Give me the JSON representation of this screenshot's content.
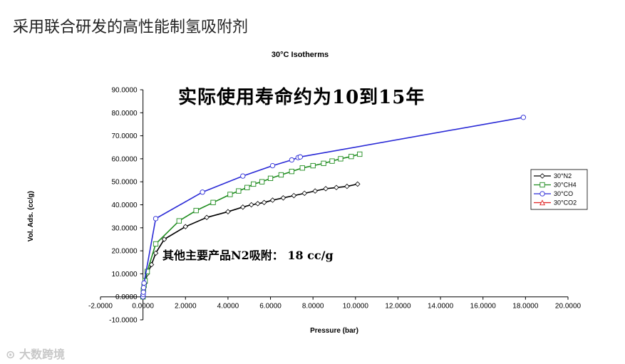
{
  "slide": {
    "title": "采用联合研发的高性能制氢吸附剂",
    "overlay_main": "实际使用寿命约为10到15年",
    "overlay_sub": "其他主要产品N2吸附： 18 cc/g",
    "watermark": "大数跨境"
  },
  "chart_data": {
    "type": "scatter",
    "title": "30°C Isotherms",
    "xlabel": "Pressure (bar)",
    "ylabel": "Vol. Ads. (cc/g)",
    "xlim": [
      -2,
      20
    ],
    "ylim": [
      -10,
      90
    ],
    "x_ticks": [
      "-2.0000",
      "0.0000",
      "2.0000",
      "4.0000",
      "6.0000",
      "8.0000",
      "10.0000",
      "12.0000",
      "14.0000",
      "16.0000",
      "18.0000",
      "20.0000"
    ],
    "y_ticks": [
      "-10.0000",
      "0.0000",
      "10.0000",
      "20.0000",
      "30.0000",
      "40.0000",
      "50.0000",
      "60.0000",
      "70.0000",
      "80.0000",
      "90.0000"
    ],
    "legend_position": "right",
    "grid": false,
    "series": [
      {
        "name": "30°N2",
        "color": "#000000",
        "marker": "diamond",
        "x": [
          0,
          0.02,
          0.05,
          0.1,
          0.2,
          0.4,
          0.6,
          1.0,
          2.0,
          3.0,
          4.0,
          4.7,
          5.1,
          5.4,
          5.7,
          6.1,
          6.6,
          7.1,
          7.6,
          8.1,
          8.6,
          9.1,
          9.6,
          10.1
        ],
        "y": [
          0,
          2,
          4,
          6,
          10,
          14,
          19,
          25,
          30.5,
          34.5,
          37,
          39,
          40,
          40.5,
          41,
          42,
          43,
          44,
          45,
          46,
          47,
          47.5,
          48,
          49
        ]
      },
      {
        "name": "30°CH4",
        "color": "#1e8c1e",
        "marker": "square",
        "x": [
          0,
          0.02,
          0.05,
          0.1,
          0.2,
          0.6,
          1.7,
          2.5,
          3.3,
          4.1,
          4.5,
          4.9,
          5.2,
          5.6,
          6.0,
          6.5,
          7.0,
          7.5,
          8.0,
          8.5,
          8.9,
          9.3,
          9.8,
          10.2
        ],
        "y": [
          0,
          3,
          5,
          7,
          11,
          23,
          33,
          37.5,
          41,
          44.5,
          46,
          47.5,
          49,
          50,
          51.5,
          53,
          54.5,
          56,
          57,
          58,
          59,
          60,
          61,
          62
        ]
      },
      {
        "name": "30°CO",
        "color": "#2a2ad6",
        "marker": "circle",
        "x": [
          0,
          0.01,
          0.02,
          0.03,
          0.05,
          0.6,
          2.8,
          4.7,
          6.1,
          7.0,
          7.3,
          7.4,
          17.9
        ],
        "y": [
          0,
          1,
          2,
          4,
          6,
          34,
          45.5,
          52.5,
          57,
          59.5,
          60.5,
          60.8,
          78
        ]
      },
      {
        "name": "30°CO2",
        "color": "#e02020",
        "marker": "triangle",
        "x": [],
        "y": []
      }
    ]
  }
}
